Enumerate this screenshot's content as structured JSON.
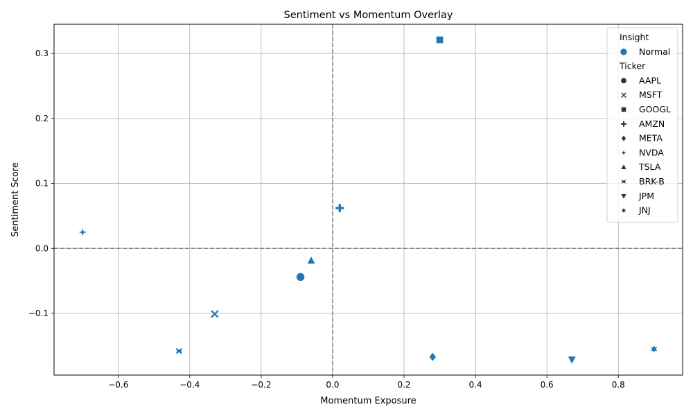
{
  "chart_data": {
    "type": "scatter",
    "title": "Sentiment vs Momentum Overlay",
    "xlabel": "Momentum Exposure",
    "ylabel": "Sentiment Score",
    "xlim": [
      -0.78,
      0.98
    ],
    "ylim": [
      -0.195,
      0.345
    ],
    "xticks": [
      -0.6,
      -0.4,
      -0.2,
      0.0,
      0.2,
      0.4,
      0.6,
      0.8
    ],
    "xtick_labels": [
      "−0.6",
      "−0.4",
      "−0.2",
      "0.0",
      "0.2",
      "0.4",
      "0.6",
      "0.8"
    ],
    "yticks": [
      -0.1,
      0.0,
      0.1,
      0.2,
      0.3
    ],
    "ytick_labels": [
      "−0.1",
      "0.0",
      "0.1",
      "0.2",
      "0.3"
    ],
    "grid": true,
    "reference_lines": {
      "x": 0,
      "y": 0,
      "style": "dashed",
      "color": "#808080"
    },
    "marker_color": "#1f77b4",
    "legend": {
      "placement": "top-right",
      "hue_title": "Insight",
      "hue_entries": [
        {
          "label": "Normal",
          "marker": "circle"
        }
      ],
      "style_title": "Ticker",
      "style_entries": [
        {
          "label": "AAPL",
          "marker": "circle"
        },
        {
          "label": "MSFT",
          "marker": "x-cross"
        },
        {
          "label": "GOOGL",
          "marker": "square"
        },
        {
          "label": "AMZN",
          "marker": "plus"
        },
        {
          "label": "META",
          "marker": "diamond"
        },
        {
          "label": "NVDA",
          "marker": "star4"
        },
        {
          "label": "TSLA",
          "marker": "triangle-up"
        },
        {
          "label": "BRK-B",
          "marker": "bowtie"
        },
        {
          "label": "JPM",
          "marker": "triangle-down"
        },
        {
          "label": "JNJ",
          "marker": "star6"
        }
      ]
    },
    "points": [
      {
        "ticker": "AAPL",
        "insight": "Normal",
        "x": -0.09,
        "y": -0.044
      },
      {
        "ticker": "MSFT",
        "insight": "Normal",
        "x": -0.33,
        "y": -0.101
      },
      {
        "ticker": "GOOGL",
        "insight": "Normal",
        "x": 0.3,
        "y": 0.321
      },
      {
        "ticker": "AMZN",
        "insight": "Normal",
        "x": 0.02,
        "y": 0.062
      },
      {
        "ticker": "META",
        "insight": "Normal",
        "x": 0.28,
        "y": -0.167
      },
      {
        "ticker": "NVDA",
        "insight": "Normal",
        "x": -0.7,
        "y": 0.025
      },
      {
        "ticker": "TSLA",
        "insight": "Normal",
        "x": -0.06,
        "y": -0.019
      },
      {
        "ticker": "BRK-B",
        "insight": "Normal",
        "x": -0.43,
        "y": -0.158
      },
      {
        "ticker": "JPM",
        "insight": "Normal",
        "x": 0.67,
        "y": -0.171
      },
      {
        "ticker": "JNJ",
        "insight": "Normal",
        "x": 0.9,
        "y": -0.155
      }
    ]
  }
}
